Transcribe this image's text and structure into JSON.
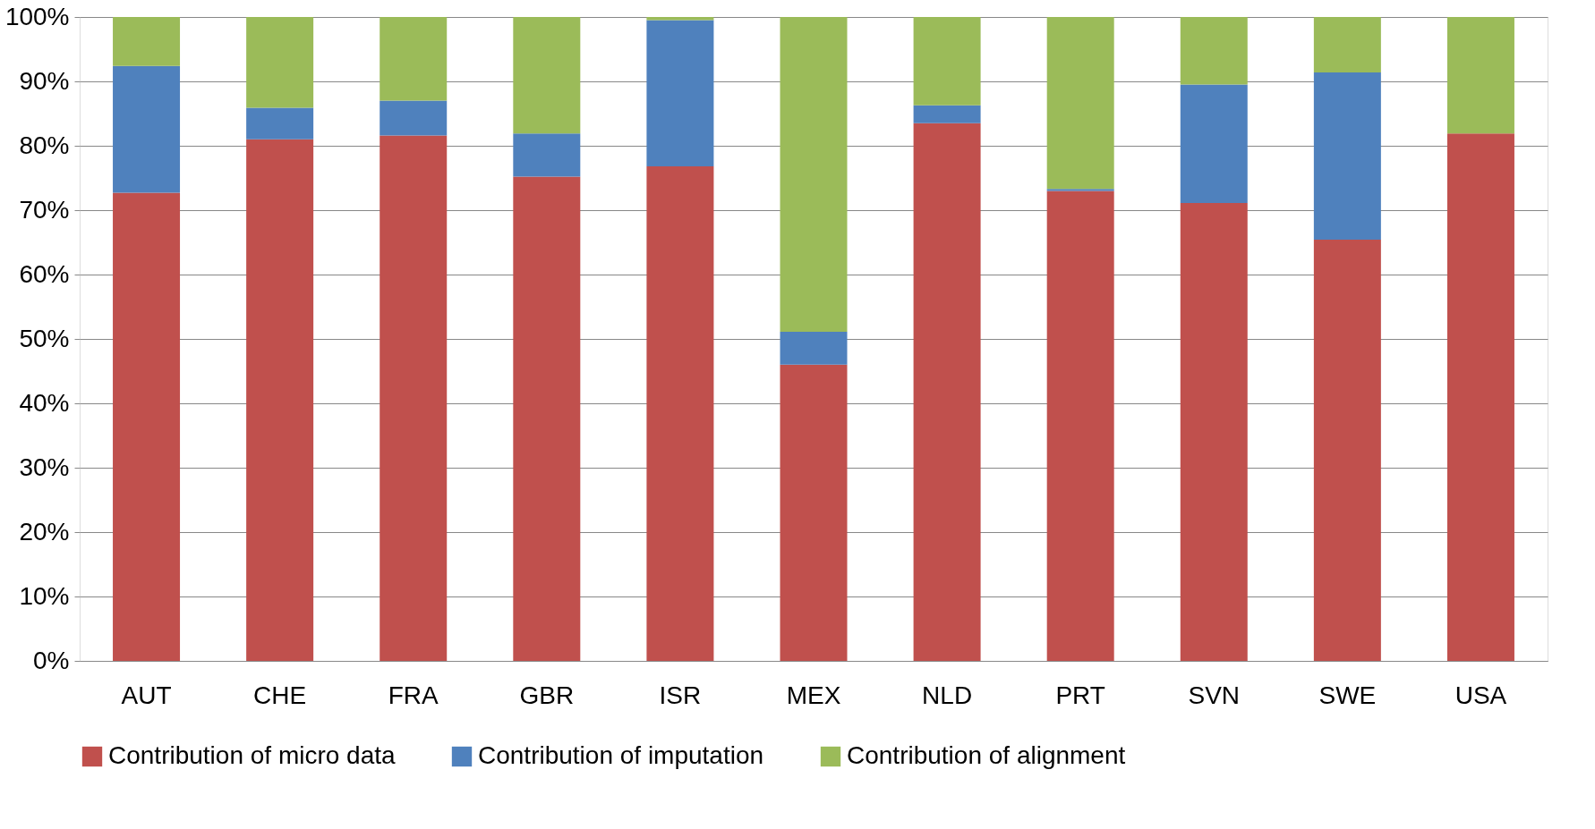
{
  "chart_data": {
    "type": "bar",
    "stacked": true,
    "categories": [
      "AUT",
      "CHE",
      "FRA",
      "GBR",
      "ISR",
      "MEX",
      "NLD",
      "PRT",
      "SVN",
      "SWE",
      "USA"
    ],
    "series": [
      {
        "name": "Contribution of micro data",
        "color": "#c0504d",
        "values": [
          72.7,
          81.0,
          81.6,
          75.2,
          76.8,
          46.0,
          83.5,
          73.0,
          71.1,
          65.4,
          81.9
        ]
      },
      {
        "name": "Contribution of imputation",
        "color": "#4f81bd",
        "values": [
          19.7,
          4.9,
          5.4,
          6.7,
          22.7,
          5.1,
          2.8,
          0.3,
          18.4,
          26.0,
          0
        ]
      },
      {
        "name": "Contribution of alignment",
        "color": "#9bbb59",
        "values": [
          7.6,
          14.1,
          13.0,
          18.1,
          0.5,
          48.9,
          13.7,
          26.7,
          10.5,
          8.6,
          18.1
        ]
      }
    ],
    "ylim": [
      0,
      100
    ],
    "yticks": [
      {
        "value": 0,
        "label": "0%"
      },
      {
        "value": 10,
        "label": "10%"
      },
      {
        "value": 20,
        "label": "20%"
      },
      {
        "value": 30,
        "label": "30%"
      },
      {
        "value": 40,
        "label": "40%"
      },
      {
        "value": 50,
        "label": "50%"
      },
      {
        "value": 60,
        "label": "60%"
      },
      {
        "value": 70,
        "label": "70%"
      },
      {
        "value": 80,
        "label": "80%"
      },
      {
        "value": 90,
        "label": "90%"
      },
      {
        "value": 100,
        "label": "100%"
      }
    ],
    "grid": "y",
    "legend": "bottom"
  }
}
